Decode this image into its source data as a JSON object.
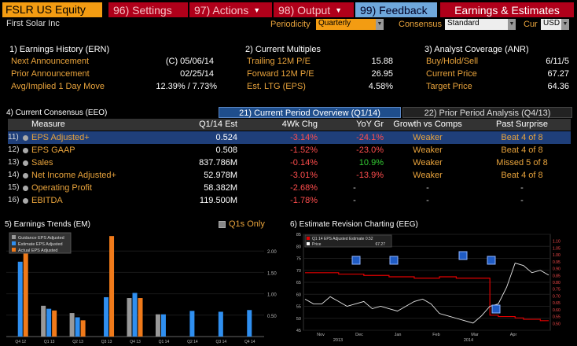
{
  "toolbar": {
    "ticker": "FSLR US Equity",
    "settings": "96) Settings",
    "actions": "97) Actions",
    "output": "98) Output",
    "feedback": "99) Feedback",
    "earnings": "Earnings & Estimates"
  },
  "subline": {
    "company": "First Solar Inc",
    "periodicity_label": "Periodicity",
    "periodicity_value": "Quarterly",
    "consensus_label": "Consensus",
    "consensus_value": "Standard",
    "cur_label": "Cur",
    "cur_value": "USD"
  },
  "earnings_history": {
    "title": "1) Earnings History (ERN)",
    "rows": [
      {
        "label": "Next Announcement",
        "value": "(C)  05/06/14"
      },
      {
        "label": "Prior Announcement",
        "value": "02/25/14"
      },
      {
        "label": "Avg/Implied 1 Day Move",
        "value": "12.39% / 7.73%"
      }
    ]
  },
  "current_multiples": {
    "title": "2) Current Multiples",
    "rows": [
      {
        "label": "Trailing 12M P/E",
        "value": "15.88"
      },
      {
        "label": "Forward 12M P/E",
        "value": "26.95"
      },
      {
        "label": "Est. LTG (EPS)",
        "value": "4.58%"
      }
    ]
  },
  "analyst_coverage": {
    "title": "3) Analyst Coverage (ANR)",
    "rows": [
      {
        "label": "Buy/Hold/Sell",
        "value": "6/11/5"
      },
      {
        "label": "Current Price",
        "value": "67.27"
      },
      {
        "label": "Target Price",
        "value": "64.36"
      }
    ]
  },
  "consensus": {
    "title": "4) Current Consensus (EEO)",
    "tab_current": "21) Current Period Overview (Q1/14)",
    "tab_prior": "22) Prior Period Analysis (Q4/13)",
    "headers": [
      "Measure",
      "Q1/14 Est",
      "4Wk Chg",
      "YoY Gr",
      "Growth vs Comps",
      "Past Surprise"
    ],
    "rows": [
      {
        "num": "11)",
        "measure": "EPS Adjusted+",
        "est": "0.524",
        "chg": "-3.14%",
        "yoy": "-24.1%",
        "growth": "Weaker",
        "surprise": "Beat 4 of 8"
      },
      {
        "num": "12)",
        "measure": "EPS GAAP",
        "est": "0.508",
        "chg": "-1.52%",
        "yoy": "-23.0%",
        "growth": "Weaker",
        "surprise": "Beat 4 of 8"
      },
      {
        "num": "13)",
        "measure": "Sales",
        "est": "837.786M",
        "chg": "-0.14%",
        "yoy": "10.9%",
        "growth": "Weaker",
        "surprise": "Missed 5 of 8"
      },
      {
        "num": "14)",
        "measure": "Net Income Adjusted+",
        "est": "52.978M",
        "chg": "-3.01%",
        "yoy": "-13.9%",
        "growth": "Weaker",
        "surprise": "Beat 4 of 8"
      },
      {
        "num": "15)",
        "measure": "Operating Profit",
        "est": "58.382M",
        "chg": "-2.68%",
        "yoy": "-",
        "growth": "-",
        "surprise": "-"
      },
      {
        "num": "16)",
        "measure": "EBITDA",
        "est": "119.500M",
        "chg": "-1.78%",
        "yoy": "-",
        "growth": "-",
        "surprise": "-"
      }
    ]
  },
  "colors": {
    "guidance": "#999999",
    "estimate": "#2f8ff0",
    "actual": "#f07a1a",
    "neg": "#ff4d4d",
    "pos": "#33cc33",
    "orange_text": "#e8a33c"
  },
  "trends": {
    "title": "5) Earnings Trends (EM)",
    "q1s_only": "Q1s Only",
    "legend": [
      "Guidance EPS Adjusted",
      "Estimate EPS Adjusted",
      "Actual EPS Adjusted"
    ]
  },
  "revision": {
    "title": "6) Estimate Revision Charting (EEG)",
    "legend": [
      {
        "label": "Q1 14 EPS Adjusted Estimate",
        "value": "0.52"
      },
      {
        "label": "Price",
        "value": "67.27"
      }
    ],
    "month_labels": [
      "Nov",
      "Dec",
      "Jan",
      "Feb",
      "Mar",
      "Apr"
    ],
    "year_labels": [
      "2013",
      "2014"
    ]
  },
  "chart_data": [
    {
      "type": "bar",
      "title": "5) Earnings Trends (EM)",
      "categories": [
        "Q4 12",
        "Q1 13",
        "Q2 13",
        "Q3 13",
        "Q4 13",
        "Q1 14",
        "Q2 14",
        "Q3 14",
        "Q4 14"
      ],
      "ylim": [
        0,
        2.5
      ],
      "yticks": [
        "2.00",
        "1.50",
        "1.00",
        "0.50"
      ],
      "series": [
        {
          "name": "Guidance EPS Adjusted",
          "values": [
            null,
            0.72,
            0.55,
            null,
            0.9,
            0.52,
            null,
            null,
            null
          ]
        },
        {
          "name": "Estimate EPS Adjusted",
          "values": [
            1.75,
            0.65,
            0.45,
            0.92,
            1.02,
            0.52,
            0.6,
            0.58,
            0.62
          ]
        },
        {
          "name": "Actual EPS Adjusted",
          "values": [
            2.02,
            0.61,
            0.38,
            2.35,
            0.9,
            null,
            null,
            null,
            null
          ]
        }
      ]
    },
    {
      "type": "line",
      "title": "6) Estimate Revision Charting (EEG)",
      "x_labels": [
        "Nov",
        "Dec",
        "Jan",
        "Feb",
        "Mar",
        "Apr"
      ],
      "left_ylim": [
        45,
        85
      ],
      "left_yticks": [
        "85",
        "80",
        "75",
        "70",
        "65",
        "60",
        "55",
        "50",
        "45"
      ],
      "right_ylim": [
        0.45,
        1.15
      ],
      "right_yticks": [
        "1.10",
        "1.05",
        "1.00",
        "0.95",
        "0.90",
        "0.85",
        "0.80",
        "0.75",
        "0.70",
        "0.65",
        "0.60",
        "0.55",
        "0.50"
      ],
      "series": [
        {
          "name": "Q1 14 EPS Adjusted Estimate",
          "axis": "right",
          "values": [
            0.87,
            0.87,
            0.87,
            0.87,
            0.86,
            0.86,
            0.86,
            0.85,
            0.85,
            0.85,
            0.84,
            0.84,
            0.84,
            0.83,
            0.83,
            0.83,
            0.84,
            0.84,
            0.83,
            0.83,
            0.83,
            0.83,
            0.56,
            0.55,
            0.55,
            0.54,
            0.53,
            0.53,
            0.52,
            0.52
          ]
        },
        {
          "name": "Price",
          "axis": "left",
          "values": [
            58,
            56,
            56,
            59,
            57,
            55,
            56,
            57,
            54,
            55,
            54,
            53,
            55,
            57,
            58,
            56,
            52,
            51,
            50,
            49,
            48,
            51,
            55,
            56,
            63,
            73,
            72,
            69,
            70,
            68
          ]
        }
      ]
    }
  ]
}
